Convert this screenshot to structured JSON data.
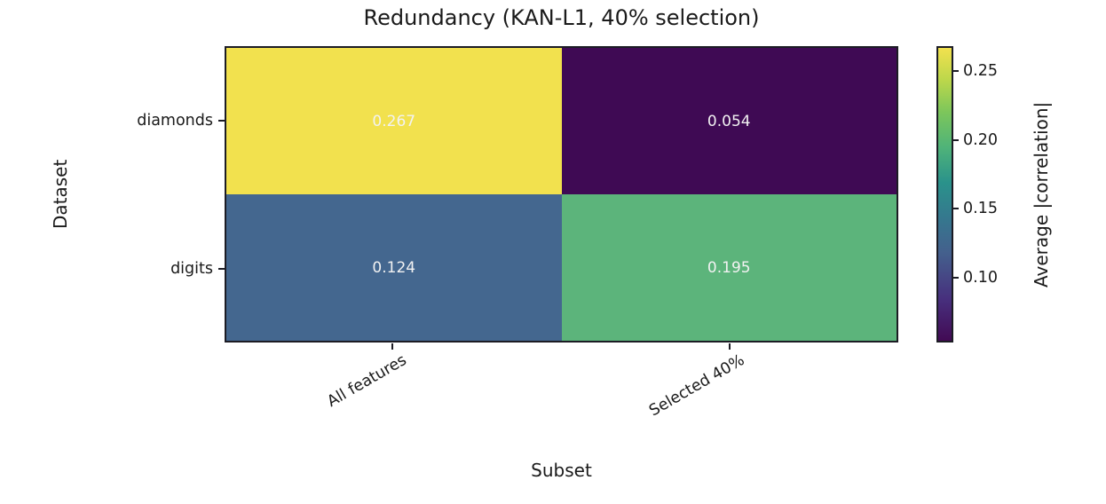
{
  "figure": {
    "title": "Redundancy (KAN-L1, 40% selection)",
    "xlabel": "Subset",
    "ylabel": "Dataset",
    "colorbar_label": "Average |correlation|"
  },
  "chart_data": {
    "type": "heatmap",
    "title": "Redundancy (KAN-L1, 40% selection)",
    "xlabel": "Subset",
    "ylabel": "Dataset",
    "columns": [
      "All features",
      "Selected 40%"
    ],
    "rows": [
      "diamonds",
      "digits"
    ],
    "values": [
      [
        0.267,
        0.054
      ],
      [
        0.124,
        0.195
      ]
    ],
    "value_labels": [
      [
        "0.267",
        "0.054"
      ],
      [
        "0.124",
        "0.195"
      ]
    ],
    "cell_colors": [
      [
        "#f2e14e",
        "#3f0a54"
      ],
      [
        "#44678f",
        "#5cb47b"
      ]
    ],
    "annotation_color": "#f2f2f2",
    "colorbar": {
      "label": "Average |correlation|",
      "colormap": "viridis",
      "vmin": 0.054,
      "vmax": 0.267,
      "ticks": [
        0.25,
        0.2,
        0.15,
        0.1
      ],
      "tick_labels": [
        "0.25",
        "0.20",
        "0.15",
        "0.10"
      ]
    },
    "legend_position": "right-colorbar",
    "grid": false
  }
}
